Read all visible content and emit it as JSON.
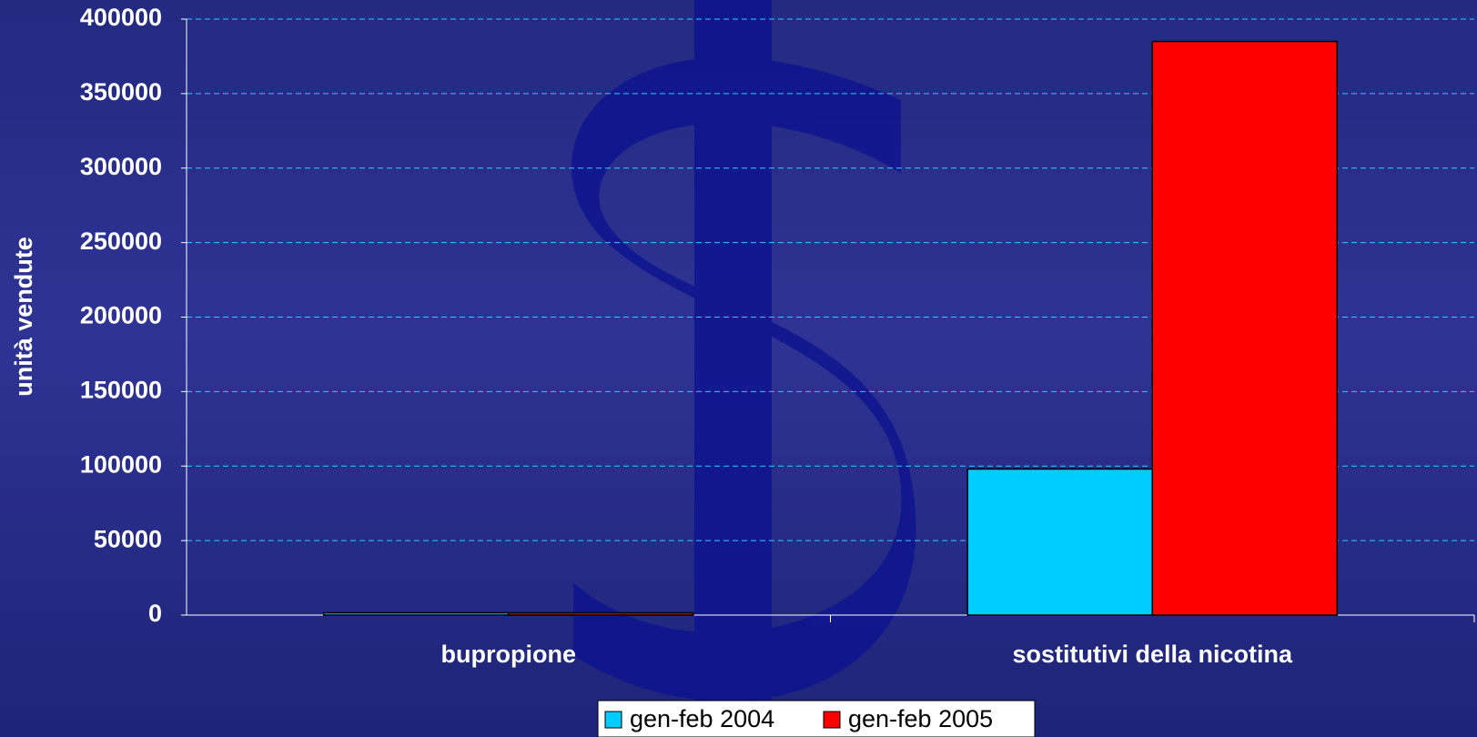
{
  "chart_data": {
    "type": "bar",
    "y_label": "unità vendute",
    "categories": [
      "bupropione",
      "sostitutivi della nicotina"
    ],
    "series": [
      {
        "name": "gen-feb 2004",
        "color": "#00ccff",
        "values": [
          1500,
          98000
        ]
      },
      {
        "name": "gen-feb 2005",
        "color": "#ff0000",
        "values": [
          1500,
          385000
        ]
      }
    ],
    "ylim": [
      0,
      400000
    ],
    "yticks": [
      0,
      50000,
      100000,
      150000,
      200000,
      250000,
      300000,
      350000,
      400000
    ],
    "grid": true
  }
}
